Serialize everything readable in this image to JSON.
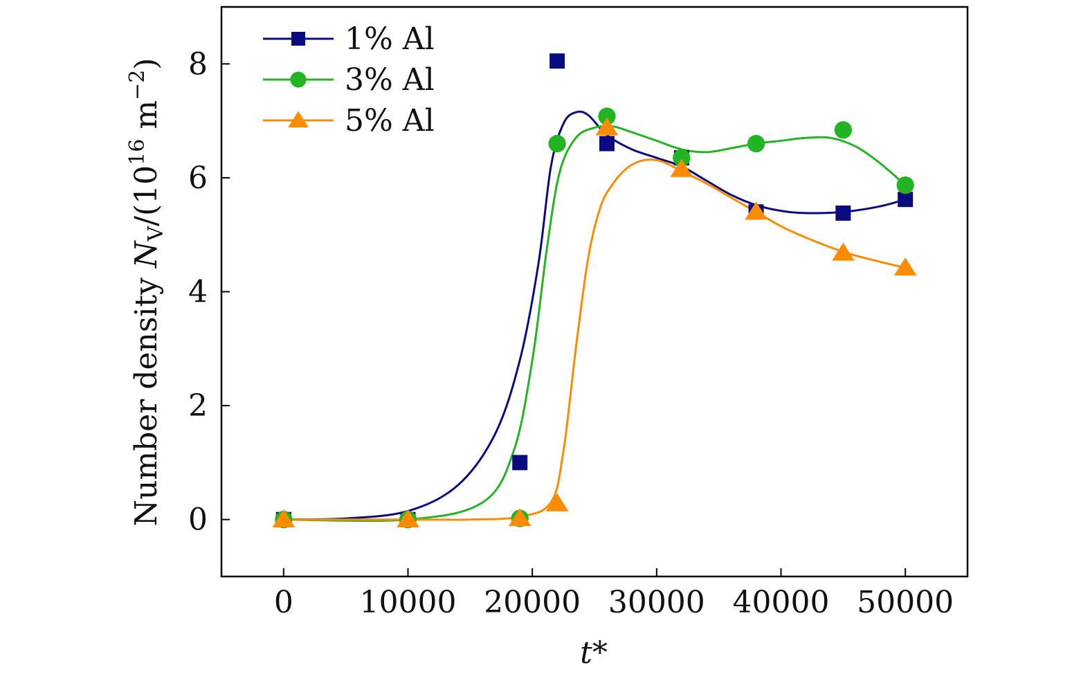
{
  "chart_data": {
    "type": "scatter",
    "title": "",
    "xlabel": "t*",
    "ylabel": {
      "prefix": "Number density ",
      "symbol": "N",
      "subscript": "V",
      "unit_open": "/(10",
      "exponent": "16",
      "unit_mid": " m",
      "unit_exponent": "−2",
      "unit_close": ")"
    },
    "xlim": [
      -5000,
      55000
    ],
    "ylim": [
      -1,
      9
    ],
    "xticks": [
      0,
      10000,
      20000,
      30000,
      40000,
      50000
    ],
    "xtick_labels": [
      "0",
      "10000",
      "20000",
      "30000",
      "40000",
      "50000"
    ],
    "yticks": [
      0,
      2,
      4,
      6,
      8
    ],
    "ytick_labels": [
      "0",
      "2",
      "4",
      "6",
      "8"
    ],
    "legend_position": "top-left",
    "series": [
      {
        "name": "1% Al",
        "color": "#0b0b80",
        "marker": "square",
        "points": [
          [
            0,
            0
          ],
          [
            10000,
            0
          ],
          [
            19000,
            1.0
          ],
          [
            22000,
            8.05
          ],
          [
            26000,
            6.6
          ],
          [
            32000,
            6.35
          ],
          [
            38000,
            5.4
          ],
          [
            45000,
            5.38
          ],
          [
            50000,
            5.62
          ]
        ],
        "curve": [
          [
            0,
            0
          ],
          [
            5000,
            0.02
          ],
          [
            10000,
            0.15
          ],
          [
            14000,
            0.6
          ],
          [
            17000,
            1.5
          ],
          [
            19000,
            2.8
          ],
          [
            20500,
            4.5
          ],
          [
            21500,
            6.2
          ],
          [
            22500,
            6.95
          ],
          [
            23500,
            7.15
          ],
          [
            24500,
            7.1
          ],
          [
            26000,
            6.75
          ],
          [
            28000,
            6.5
          ],
          [
            30000,
            6.35
          ],
          [
            32000,
            6.2
          ],
          [
            34000,
            5.95
          ],
          [
            36000,
            5.7
          ],
          [
            38000,
            5.52
          ],
          [
            40000,
            5.42
          ],
          [
            42000,
            5.38
          ],
          [
            45000,
            5.4
          ],
          [
            48000,
            5.5
          ],
          [
            50000,
            5.62
          ]
        ]
      },
      {
        "name": "3% Al",
        "color": "#22b422",
        "marker": "circle",
        "points": [
          [
            0,
            0
          ],
          [
            10000,
            0
          ],
          [
            19000,
            0.02
          ],
          [
            22000,
            6.6
          ],
          [
            26000,
            7.08
          ],
          [
            32000,
            6.35
          ],
          [
            38000,
            6.6
          ],
          [
            45000,
            6.84
          ],
          [
            50000,
            5.87
          ]
        ],
        "curve": [
          [
            0,
            0
          ],
          [
            10000,
            0
          ],
          [
            16000,
            0.3
          ],
          [
            18500,
            1.2
          ],
          [
            20000,
            2.8
          ],
          [
            21200,
            4.8
          ],
          [
            22200,
            6.1
          ],
          [
            23500,
            6.7
          ],
          [
            25000,
            6.88
          ],
          [
            26500,
            6.9
          ],
          [
            28000,
            6.8
          ],
          [
            30000,
            6.65
          ],
          [
            32000,
            6.5
          ],
          [
            34000,
            6.45
          ],
          [
            36000,
            6.52
          ],
          [
            38000,
            6.6
          ],
          [
            40000,
            6.65
          ],
          [
            42000,
            6.7
          ],
          [
            44000,
            6.7
          ],
          [
            46000,
            6.55
          ],
          [
            48000,
            6.25
          ],
          [
            50000,
            5.87
          ]
        ]
      },
      {
        "name": "5% Al",
        "color": "#ff8c00",
        "marker": "triangle",
        "points": [
          [
            0,
            0
          ],
          [
            10000,
            0
          ],
          [
            19000,
            0.02
          ],
          [
            22000,
            0.28
          ],
          [
            26000,
            6.88
          ],
          [
            32000,
            6.15
          ],
          [
            38000,
            5.4
          ],
          [
            45000,
            4.68
          ],
          [
            50000,
            4.42
          ]
        ],
        "curve": [
          [
            0,
            0
          ],
          [
            10000,
            0
          ],
          [
            15000,
            0
          ],
          [
            19000,
            0.05
          ],
          [
            21500,
            0.3
          ],
          [
            22500,
            1.2
          ],
          [
            23500,
            3.0
          ],
          [
            24500,
            4.6
          ],
          [
            25500,
            5.5
          ],
          [
            26500,
            5.9
          ],
          [
            27500,
            6.15
          ],
          [
            28500,
            6.28
          ],
          [
            29500,
            6.32
          ],
          [
            30500,
            6.28
          ],
          [
            32000,
            6.12
          ],
          [
            34000,
            5.9
          ],
          [
            36000,
            5.65
          ],
          [
            38000,
            5.4
          ],
          [
            40000,
            5.15
          ],
          [
            42000,
            4.95
          ],
          [
            45000,
            4.7
          ],
          [
            47500,
            4.55
          ],
          [
            50000,
            4.42
          ]
        ]
      }
    ]
  }
}
